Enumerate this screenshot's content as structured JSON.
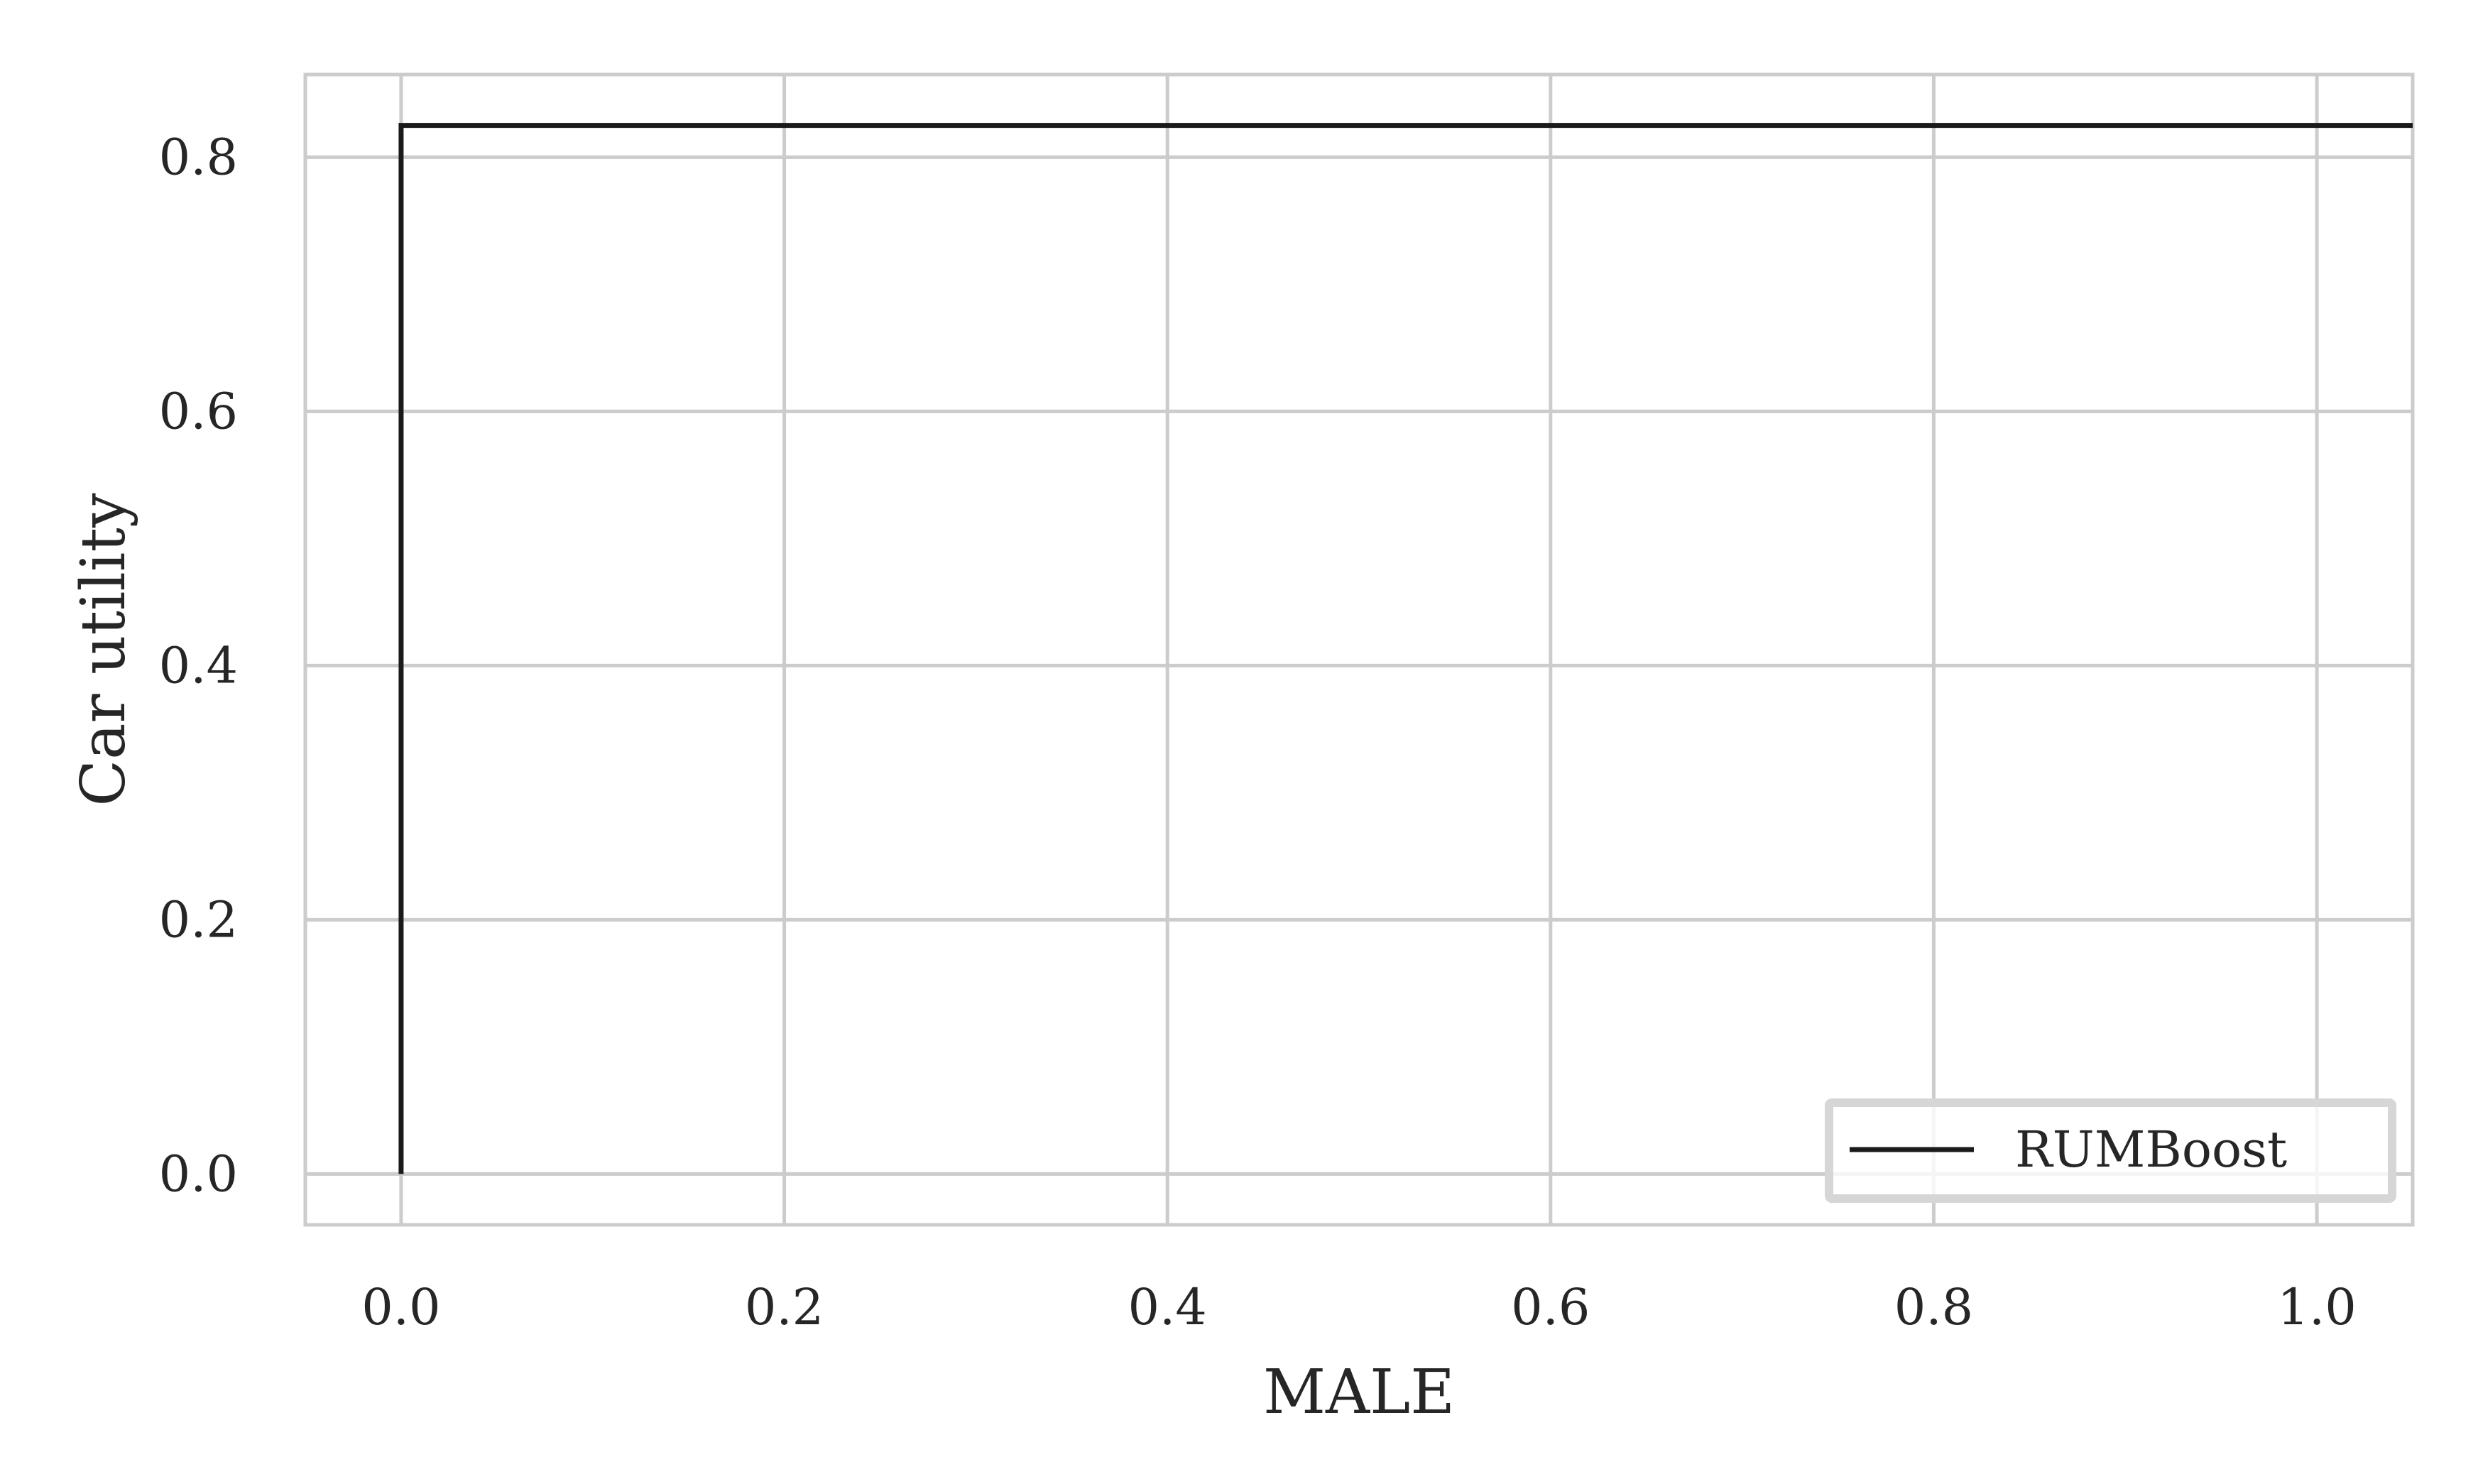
{
  "chart_data": {
    "type": "line",
    "title": "",
    "xlabel": "MALE",
    "ylabel": "Car utility",
    "xlim": [
      -0.05,
      1.05
    ],
    "ylim": [
      -0.04,
      0.865
    ],
    "xticks": [
      0.0,
      0.2,
      0.4,
      0.6,
      0.8,
      1.0
    ],
    "yticks": [
      0.0,
      0.2,
      0.4,
      0.6,
      0.8
    ],
    "xtick_labels": [
      "0.0",
      "0.2",
      "0.4",
      "0.6",
      "0.8",
      "1.0"
    ],
    "ytick_labels": [
      "0.0",
      "0.2",
      "0.4",
      "0.6",
      "0.8"
    ],
    "grid": true,
    "legend_position": "bottom-right",
    "series": [
      {
        "name": "RUMBoost",
        "color": "#1a1a1a",
        "x": [
          0.0,
          0.0,
          1.05
        ],
        "y": [
          0.0,
          0.825,
          0.825
        ]
      }
    ]
  }
}
